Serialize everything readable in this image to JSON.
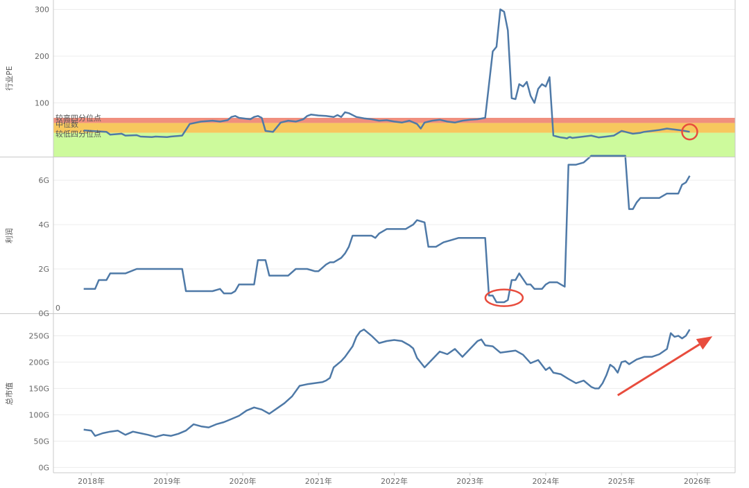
{
  "colors": {
    "line": "#4e79a7",
    "grid": "#ececec",
    "axis": "#c8c8c8",
    "band_high": "#f08f7e",
    "band_mid": "#f7c75e",
    "band_low": "#cdfa9c",
    "annotation": "#e84c3d"
  },
  "chart_data": [
    {
      "type": "line",
      "ylabel": "行业PE",
      "ylim": [
        -15,
        320
      ],
      "yticks": [
        {
          "v": 100,
          "label": "100"
        },
        {
          "v": 200,
          "label": "200"
        },
        {
          "v": 300,
          "label": "300"
        }
      ],
      "bands": [
        {
          "name": "较高四分位点",
          "from": 57,
          "to": 68,
          "color": "band_high"
        },
        {
          "name": "中位数",
          "from": 36,
          "to": 57,
          "color": "band_mid"
        },
        {
          "name": "较低四分位点",
          "from": -15,
          "to": 36,
          "color": "band_low"
        }
      ],
      "annotations": [
        {
          "kind": "circle",
          "x": 2025.9,
          "y": 38
        }
      ],
      "series": [
        {
          "x": [
            2017.9,
            2018.2,
            2018.25,
            2018.4,
            2018.45,
            2018.6,
            2018.65,
            2018.8,
            2018.85,
            2019.0,
            2019.05,
            2019.2,
            2019.3,
            2019.45,
            2019.6,
            2019.7,
            2019.8,
            2019.85,
            2019.9,
            2019.95,
            2020.1,
            2020.15,
            2020.2,
            2020.25,
            2020.3,
            2020.4,
            2020.5,
            2020.6,
            2020.7,
            2020.8,
            2020.85,
            2020.9,
            2021.0,
            2021.1,
            2021.2,
            2021.25,
            2021.3,
            2021.35,
            2021.4,
            2021.5,
            2021.6,
            2021.7,
            2021.8,
            2021.9,
            2022.0,
            2022.1,
            2022.2,
            2022.3,
            2022.35,
            2022.4,
            2022.5,
            2022.6,
            2022.7,
            2022.8,
            2022.9,
            2023.0,
            2023.1,
            2023.2,
            2023.3,
            2023.35,
            2023.4,
            2023.45,
            2023.5,
            2023.55,
            2023.6,
            2023.65,
            2023.7,
            2023.75,
            2023.8,
            2023.85,
            2023.9,
            2023.95,
            2024.0,
            2024.05,
            2024.1,
            2024.15,
            2024.2,
            2024.25,
            2024.28,
            2024.3,
            2024.32,
            2024.35,
            2024.5,
            2024.6,
            2024.7,
            2024.8,
            2024.9,
            2025.0,
            2025.05,
            2025.1,
            2025.15,
            2025.2,
            2025.25,
            2025.3,
            2025.4,
            2025.5,
            2025.6,
            2025.7,
            2025.8,
            2025.9
          ],
          "y": [
            41,
            38,
            32,
            34,
            30,
            31,
            28,
            27,
            28,
            27,
            28,
            30,
            55,
            60,
            62,
            60,
            63,
            70,
            72,
            68,
            65,
            70,
            72,
            68,
            40,
            38,
            58,
            62,
            60,
            65,
            72,
            75,
            73,
            72,
            70,
            74,
            70,
            80,
            78,
            70,
            67,
            65,
            62,
            63,
            60,
            58,
            62,
            55,
            45,
            58,
            62,
            64,
            60,
            58,
            62,
            64,
            65,
            68,
            210,
            220,
            300,
            295,
            255,
            110,
            108,
            140,
            135,
            145,
            115,
            100,
            130,
            140,
            135,
            155,
            30,
            28,
            26,
            25,
            24,
            26,
            27,
            25,
            28,
            30,
            26,
            28,
            30,
            40,
            38,
            36,
            34,
            35,
            36,
            38,
            40,
            42,
            45,
            43,
            41,
            38
          ]
        }
      ]
    },
    {
      "type": "line",
      "ylabel": "利润",
      "ylim": [
        0,
        7.0
      ],
      "yticks": [
        {
          "v": 0,
          "label": "0G"
        },
        {
          "v": 2,
          "label": "2G"
        },
        {
          "v": 4,
          "label": "4G"
        },
        {
          "v": 6,
          "label": "6G"
        }
      ],
      "zero_label": "0",
      "annotations": [
        {
          "kind": "ellipse",
          "x": 2023.45,
          "y": 0.7
        }
      ],
      "series": [
        {
          "x": [
            2017.9,
            2018.05,
            2018.1,
            2018.2,
            2018.25,
            2018.45,
            2018.6,
            2018.65,
            2019.0,
            2019.1,
            2019.2,
            2019.25,
            2019.35,
            2019.5,
            2019.6,
            2019.7,
            2019.75,
            2019.85,
            2019.9,
            2019.95,
            2020.0,
            2020.15,
            2020.2,
            2020.25,
            2020.3,
            2020.35,
            2020.45,
            2020.5,
            2020.6,
            2020.7,
            2020.75,
            2020.85,
            2020.95,
            2021.0,
            2021.1,
            2021.15,
            2021.2,
            2021.3,
            2021.35,
            2021.4,
            2021.45,
            2021.55,
            2021.6,
            2021.7,
            2021.75,
            2021.8,
            2021.9,
            2022.0,
            2022.1,
            2022.15,
            2022.2,
            2022.25,
            2022.3,
            2022.4,
            2022.45,
            2022.55,
            2022.6,
            2022.65,
            2022.75,
            2022.85,
            2022.95,
            2023.0,
            2023.05,
            2023.2,
            2023.25,
            2023.3,
            2023.35,
            2023.45,
            2023.5,
            2023.55,
            2023.6,
            2023.65,
            2023.75,
            2023.8,
            2023.85,
            2023.95,
            2024.0,
            2024.05,
            2024.15,
            2024.2,
            2024.25,
            2024.3,
            2024.35,
            2024.4,
            2024.5,
            2024.6,
            2024.7,
            2024.75,
            2024.85,
            2024.95,
            2025.0,
            2025.05,
            2025.1,
            2025.15,
            2025.2,
            2025.25,
            2025.3,
            2025.35,
            2025.5,
            2025.6,
            2025.65,
            2025.75,
            2025.8,
            2025.85,
            2025.9
          ],
          "y": [
            1.1,
            1.1,
            1.5,
            1.5,
            1.8,
            1.8,
            2.0,
            2.0,
            2.0,
            2.0,
            2.0,
            1.0,
            1.0,
            1.0,
            1.0,
            1.1,
            0.9,
            0.9,
            1.0,
            1.3,
            1.3,
            1.3,
            2.4,
            2.4,
            2.4,
            1.7,
            1.7,
            1.7,
            1.7,
            2.0,
            2.0,
            2.0,
            1.9,
            1.9,
            2.2,
            2.3,
            2.3,
            2.5,
            2.7,
            3.0,
            3.5,
            3.5,
            3.5,
            3.5,
            3.4,
            3.6,
            3.8,
            3.8,
            3.8,
            3.8,
            3.9,
            4.0,
            4.2,
            4.1,
            3.0,
            3.0,
            3.1,
            3.2,
            3.3,
            3.4,
            3.4,
            3.4,
            3.4,
            3.4,
            0.8,
            0.8,
            0.5,
            0.5,
            0.6,
            1.5,
            1.5,
            1.8,
            1.3,
            1.3,
            1.1,
            1.1,
            1.3,
            1.4,
            1.4,
            1.3,
            1.2,
            6.7,
            6.7,
            6.7,
            6.8,
            7.1,
            7.1,
            7.1,
            7.1,
            7.1,
            7.1,
            7.1,
            4.7,
            4.7,
            5.0,
            5.2,
            5.2,
            5.2,
            5.2,
            5.4,
            5.4,
            5.4,
            5.8,
            5.9,
            6.2
          ]
        }
      ]
    },
    {
      "type": "line",
      "ylabel": "总市值",
      "ylim": [
        -10,
        290
      ],
      "yticks": [
        {
          "v": 0,
          "label": "0G"
        },
        {
          "v": 50,
          "label": "50G"
        },
        {
          "v": 100,
          "label": "100G"
        },
        {
          "v": 150,
          "label": "150G"
        },
        {
          "v": 200,
          "label": "200G"
        },
        {
          "v": 250,
          "label": "250G"
        }
      ],
      "annotations": [
        {
          "kind": "arrow",
          "x1": 2024.95,
          "y1": 137,
          "x2": 2026.2,
          "y2": 249
        }
      ],
      "series": [
        {
          "x": [
            2017.9,
            2018.0,
            2018.05,
            2018.15,
            2018.25,
            2018.35,
            2018.45,
            2018.55,
            2018.65,
            2018.75,
            2018.85,
            2018.95,
            2019.05,
            2019.15,
            2019.25,
            2019.35,
            2019.45,
            2019.55,
            2019.65,
            2019.75,
            2019.85,
            2019.95,
            2020.05,
            2020.15,
            2020.25,
            2020.35,
            2020.45,
            2020.55,
            2020.65,
            2020.75,
            2020.85,
            2020.95,
            2021.05,
            2021.1,
            2021.15,
            2021.2,
            2021.3,
            2021.35,
            2021.45,
            2021.5,
            2021.55,
            2021.6,
            2021.7,
            2021.8,
            2021.9,
            2022.0,
            2022.1,
            2022.2,
            2022.25,
            2022.3,
            2022.4,
            2022.5,
            2022.6,
            2022.7,
            2022.8,
            2022.9,
            2023.0,
            2023.1,
            2023.15,
            2023.2,
            2023.3,
            2023.4,
            2023.5,
            2023.6,
            2023.7,
            2023.8,
            2023.9,
            2024.0,
            2024.05,
            2024.1,
            2024.2,
            2024.3,
            2024.4,
            2024.5,
            2024.6,
            2024.65,
            2024.7,
            2024.75,
            2024.8,
            2024.85,
            2024.9,
            2024.95,
            2025.0,
            2025.05,
            2025.1,
            2025.2,
            2025.3,
            2025.4,
            2025.5,
            2025.6,
            2025.65,
            2025.7,
            2025.75,
            2025.8,
            2025.85,
            2025.9
          ],
          "y": [
            72,
            70,
            60,
            65,
            68,
            70,
            62,
            68,
            65,
            62,
            58,
            62,
            60,
            64,
            70,
            82,
            78,
            76,
            82,
            86,
            92,
            98,
            108,
            114,
            110,
            102,
            112,
            122,
            135,
            155,
            158,
            160,
            162,
            165,
            170,
            190,
            202,
            210,
            230,
            248,
            258,
            262,
            250,
            236,
            240,
            242,
            240,
            232,
            226,
            208,
            190,
            205,
            220,
            215,
            225,
            210,
            225,
            240,
            243,
            232,
            230,
            218,
            220,
            222,
            214,
            198,
            204,
            185,
            190,
            180,
            177,
            168,
            160,
            165,
            153,
            150,
            150,
            160,
            175,
            195,
            190,
            180,
            200,
            202,
            196,
            205,
            210,
            210,
            215,
            225,
            255,
            248,
            250,
            245,
            250,
            262
          ]
        }
      ]
    }
  ],
  "x_axis": {
    "range": [
      2017.5,
      2026.5
    ],
    "ticks": [
      {
        "v": 2018.0,
        "label": "2018年"
      },
      {
        "v": 2019.0,
        "label": "2019年"
      },
      {
        "v": 2020.0,
        "label": "2020年"
      },
      {
        "v": 2021.0,
        "label": "2021年"
      },
      {
        "v": 2022.0,
        "label": "2022年"
      },
      {
        "v": 2023.0,
        "label": "2023年"
      },
      {
        "v": 2024.0,
        "label": "2024年"
      },
      {
        "v": 2025.0,
        "label": "2025年"
      },
      {
        "v": 2026.0,
        "label": "2026年"
      }
    ]
  }
}
